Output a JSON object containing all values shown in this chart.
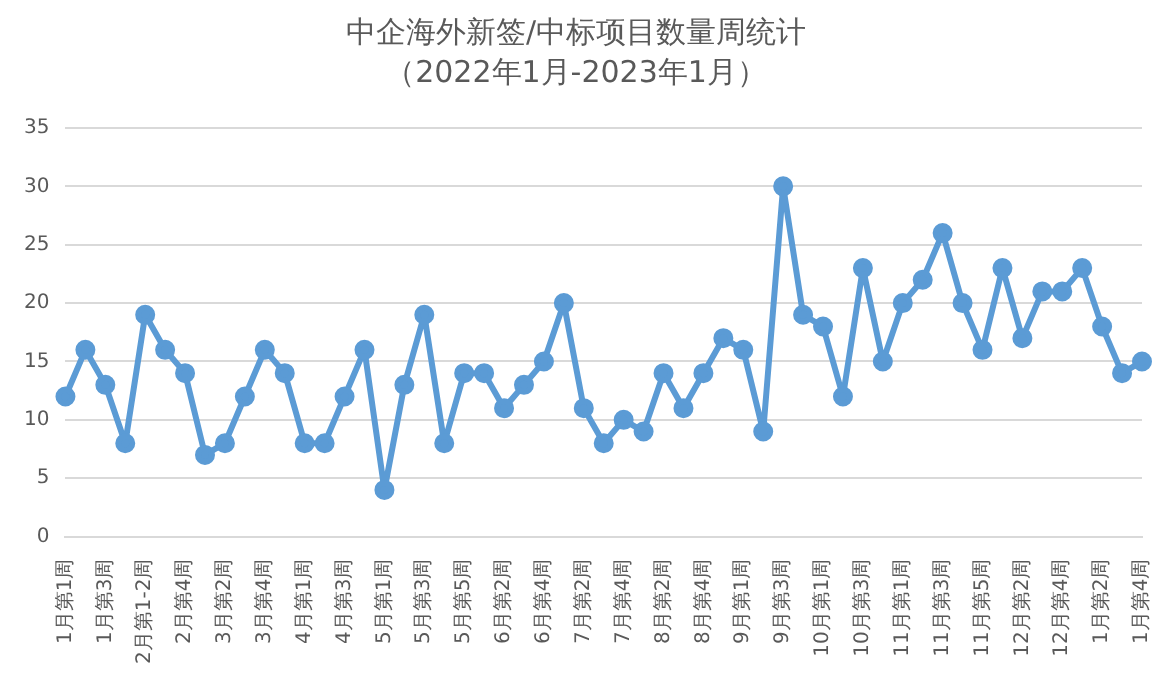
{
  "chart_data": {
    "type": "line",
    "title": "中企海外新签/中标项目数量周统计",
    "subtitle": "（2022年1月-2023年1月）",
    "categories": [
      "1月第1周",
      null,
      "1月第3周",
      null,
      "2月第1-2周",
      null,
      "2月第4周",
      null,
      "3月第2周",
      null,
      "3月第4周",
      null,
      "4月第1周",
      null,
      "4月第3周",
      null,
      "5月第1周",
      null,
      "5月第3周",
      null,
      "5月第5周",
      null,
      "6月第2周",
      null,
      "6月第4周",
      null,
      "7月第2周",
      null,
      "7月第4周",
      null,
      "8月第2周",
      null,
      "8月第4周",
      null,
      "9月第1周",
      null,
      "9月第3周",
      null,
      "10月第1周",
      null,
      "10月第3周",
      null,
      "11月第1周",
      null,
      "11月第3周",
      null,
      "11月第5周",
      null,
      "12月第2周",
      null,
      "12月第4周",
      null,
      "1月第2周",
      null,
      "1月第4周"
    ],
    "series": [
      {
        "color": "#5b9bd5",
        "values": [
          12,
          16,
          13,
          8,
          19,
          16,
          14,
          7,
          8,
          12,
          16,
          14,
          8,
          8,
          12,
          16,
          4,
          13,
          19,
          8,
          14,
          14,
          11,
          13,
          15,
          20,
          11,
          8,
          10,
          9,
          14,
          11,
          14,
          17,
          16,
          9,
          30,
          19,
          18,
          12,
          23,
          15,
          20,
          22,
          26,
          20,
          16,
          23,
          17,
          21,
          21,
          23,
          18,
          14,
          15
        ]
      }
    ],
    "ylim": [
      0,
      35
    ],
    "yticks": [
      0,
      5,
      10,
      15,
      20,
      25,
      30,
      35
    ],
    "grid": "y",
    "legend": false,
    "marker": "circle",
    "line_style": "solid"
  }
}
